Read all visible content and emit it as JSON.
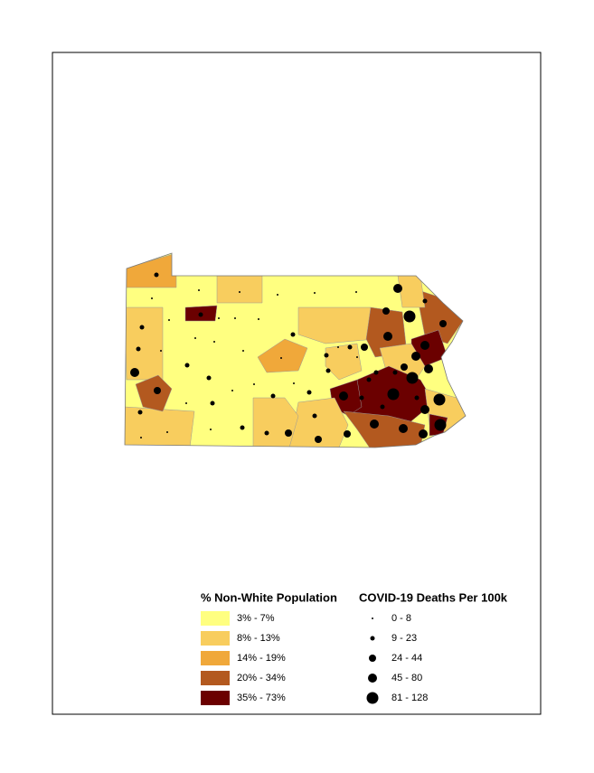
{
  "legend_fill": {
    "title": "% Non-White Population",
    "classes": [
      {
        "label": "3% - 7%",
        "color": "#ffff80"
      },
      {
        "label": "8% - 13%",
        "color": "#f8cd5e"
      },
      {
        "label": "14% - 19%",
        "color": "#f0a83a"
      },
      {
        "label": "20% - 34%",
        "color": "#b3591f"
      },
      {
        "label": "35% - 73%",
        "color": "#6b0000"
      }
    ]
  },
  "legend_dots": {
    "title": "COVID-19 Deaths Per 100k",
    "classes": [
      "0 - 8",
      "9 - 23",
      "24 - 44",
      "45 - 80",
      "81 - 128"
    ]
  }
}
